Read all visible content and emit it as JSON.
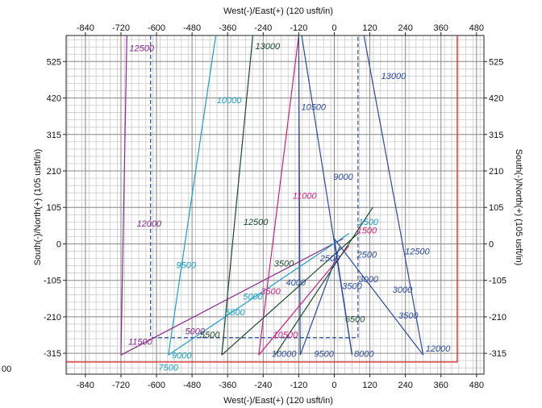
{
  "chart_data": {
    "type": "line",
    "title": "",
    "xlabel_top": "West(-)/East(+) (120 usft/in)",
    "xlabel_bottom": "West(-)/East(+) (120 usft/in)",
    "ylabel_left": "South(-)/North(+) (105 usft/in)",
    "ylabel_right": "South(-)/North(+) (105 usft/in)",
    "xlim": [
      -905,
      505
    ],
    "ylim": [
      -375,
      600
    ],
    "x_ticks": [
      -840,
      -720,
      -600,
      -480,
      -360,
      -240,
      -120,
      0,
      120,
      240,
      360,
      480
    ],
    "y_ticks": [
      -315,
      -210,
      -105,
      0,
      105,
      210,
      315,
      420,
      525
    ],
    "x_tick_labels": [
      "-840",
      "-720",
      "-600",
      "-480",
      "-360",
      "-240",
      "-120",
      "0",
      "120",
      "240",
      "360",
      "480"
    ],
    "y_tick_labels": [
      "-315",
      "-210",
      "-105",
      "0",
      "105",
      "210",
      "315",
      "420",
      "525"
    ],
    "edge_label": "00",
    "grid": true,
    "lease_line": {
      "color": "#e03030",
      "x": 415,
      "y_bottom": -340,
      "y_top": 600
    },
    "dashed_rect": {
      "color": "#2a4aa0",
      "x": [
        -620,
        80
      ],
      "y": [
        -270,
        600
      ]
    },
    "wells": [
      {
        "color": "#8a2a8a",
        "points": [
          [
            -720,
            -320
          ],
          [
            -700,
            600
          ]
        ],
        "labels": [
          {
            "text": "12500",
            "x": -650,
            "y": 555
          },
          {
            "text": "12000",
            "x": -625,
            "y": 50
          },
          {
            "text": "11500",
            "x": -655,
            "y": -290
          }
        ]
      },
      {
        "color": "#1aa0c8",
        "points": [
          [
            -560,
            -320
          ],
          [
            -400,
            600
          ]
        ],
        "labels": [
          {
            "text": "10000",
            "x": -355,
            "y": 405
          },
          {
            "text": "9500",
            "x": -500,
            "y": -70
          },
          {
            "text": "9000",
            "x": -515,
            "y": -330
          }
        ]
      },
      {
        "color": "#1a4a2a",
        "points": [
          [
            -380,
            -320
          ],
          [
            -275,
            600
          ]
        ],
        "labels": [
          {
            "text": "13000",
            "x": -225,
            "y": 560
          },
          {
            "text": "12500",
            "x": -265,
            "y": 55
          }
        ]
      },
      {
        "color": "#d0207a",
        "points": [
          [
            -255,
            -320
          ],
          [
            -120,
            600
          ]
        ],
        "labels": [
          {
            "text": "11000",
            "x": -100,
            "y": 130
          },
          {
            "text": "10500",
            "x": -165,
            "y": -270
          }
        ]
      },
      {
        "color": "#2a4aa0",
        "points": [
          [
            -115,
            -320
          ],
          [
            -120,
            600
          ]
        ],
        "labels": [
          {
            "text": "10500",
            "x": -70,
            "y": 385
          },
          {
            "text": "10000",
            "x": -170,
            "y": -325
          },
          {
            "text": "9500",
            "x": -35,
            "y": -325
          }
        ]
      },
      {
        "color": "#2a4aa0",
        "points": [
          [
            -110,
            600
          ],
          [
            60,
            -320
          ]
        ],
        "labels": [
          {
            "text": "9000",
            "x": 30,
            "y": 185
          },
          {
            "text": "8000",
            "x": 100,
            "y": -325
          }
        ]
      },
      {
        "color": "#2a4aa0",
        "points": [
          [
            100,
            600
          ],
          [
            300,
            -320
          ]
        ],
        "labels": [
          {
            "text": "13000",
            "x": 200,
            "y": 475
          },
          {
            "text": "12500",
            "x": 280,
            "y": -30
          },
          {
            "text": "12000",
            "x": 350,
            "y": -310
          }
        ]
      },
      {
        "color": "#8a2a8a",
        "points": [
          [
            -720,
            -320
          ],
          [
            30,
            15
          ]
        ],
        "labels": [
          {
            "text": "5000",
            "x": -470,
            "y": -260
          }
        ]
      },
      {
        "color": "#1aa0c8",
        "points": [
          [
            -560,
            -320
          ],
          [
            50,
            30
          ]
        ],
        "labels": [
          {
            "text": "7500",
            "x": -560,
            "y": -365
          },
          {
            "text": "5500",
            "x": -335,
            "y": -205
          },
          {
            "text": "5000",
            "x": -275,
            "y": -160
          },
          {
            "text": "1500",
            "x": 115,
            "y": 55
          }
        ]
      },
      {
        "color": "#1a4a2a",
        "points": [
          [
            -380,
            -320
          ],
          [
            80,
            30
          ]
        ],
        "labels": [
          {
            "text": "5500",
            "x": -420,
            "y": -270
          },
          {
            "text": "3500",
            "x": -170,
            "y": -65
          }
        ]
      },
      {
        "color": "#d0207a",
        "points": [
          [
            -255,
            -320
          ],
          [
            50,
            -5
          ]
        ],
        "labels": [
          {
            "text": "3500",
            "x": -215,
            "y": -145
          },
          {
            "text": "1500",
            "x": 110,
            "y": 30
          }
        ]
      },
      {
        "color": "#2a4aa0",
        "points": [
          [
            -115,
            -320
          ],
          [
            20,
            -5
          ]
        ],
        "labels": [
          {
            "text": "4000",
            "x": -130,
            "y": -120
          },
          {
            "text": "2500",
            "x": -15,
            "y": -50
          }
        ]
      },
      {
        "color": "#1a4a2a",
        "points": [
          [
            -200,
            -320
          ],
          [
            130,
            105
          ]
        ],
        "labels": [
          {
            "text": "6500",
            "x": 70,
            "y": -225
          }
        ]
      },
      {
        "color": "#2a4aa0",
        "points": [
          [
            60,
            -320
          ],
          [
            0,
            15
          ]
        ],
        "labels": [
          {
            "text": "2500",
            "x": 110,
            "y": -40
          },
          {
            "text": "3000",
            "x": 115,
            "y": -110
          }
        ]
      },
      {
        "color": "#2a4aa0",
        "points": [
          [
            300,
            -320
          ],
          [
            0,
            15
          ]
        ],
        "labels": [
          {
            "text": "3500",
            "x": 60,
            "y": -130
          },
          {
            "text": "3000",
            "x": 230,
            "y": -140
          },
          {
            "text": "3500",
            "x": 250,
            "y": -215
          }
        ]
      }
    ]
  }
}
